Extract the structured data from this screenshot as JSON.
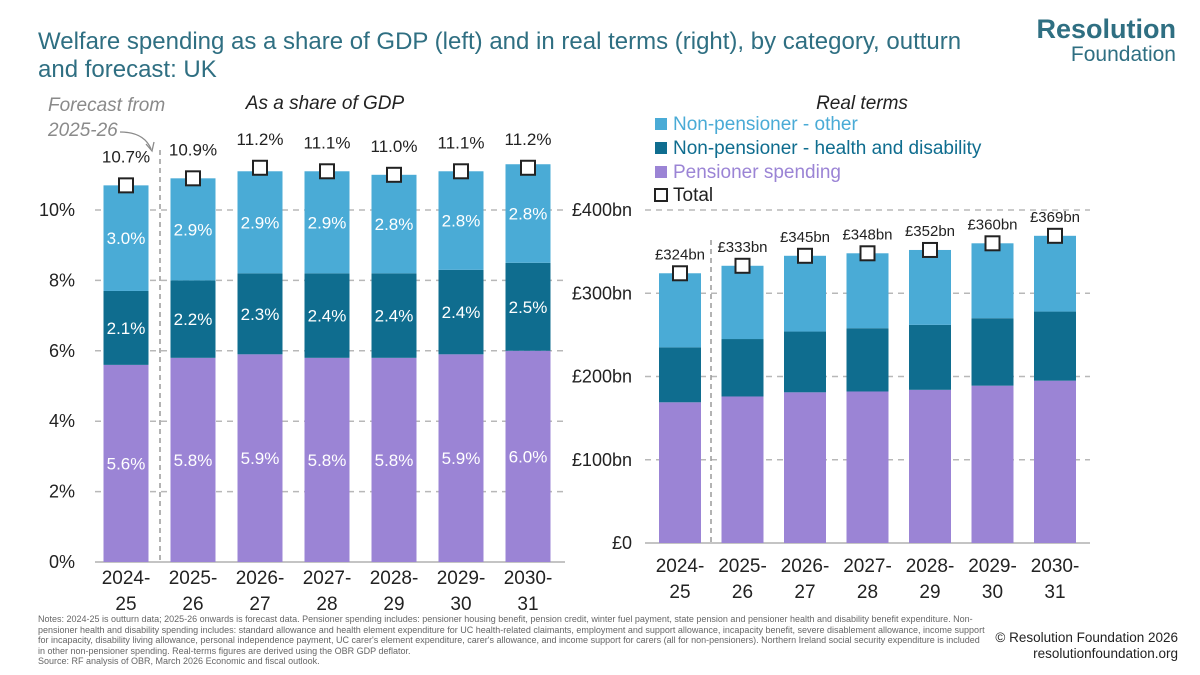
{
  "title": "Welfare spending as a share of GDP (left) and in real terms (right), by category, outturn and forecast: UK",
  "logo": {
    "line1": "Resolution",
    "line2": "Foundation"
  },
  "colors": {
    "pensioner": "#9b84d5",
    "health": "#0f6d8f",
    "other": "#4aabd6",
    "title": "#2f6f82"
  },
  "chart_data": [
    {
      "type": "bar",
      "stacked": true,
      "title": "As a share of GDP",
      "annotation": "Forecast from 2025-26",
      "categories": [
        "2024-25",
        "2025-26",
        "2026-27",
        "2027-28",
        "2028-29",
        "2029-30",
        "2030-31"
      ],
      "series": [
        {
          "name": "Pensioner spending",
          "values": [
            5.6,
            5.8,
            5.9,
            5.8,
            5.8,
            5.9,
            6.0
          ],
          "labels": [
            "5.6%",
            "5.8%",
            "5.9%",
            "5.8%",
            "5.8%",
            "5.9%",
            "6.0%"
          ]
        },
        {
          "name": "Non-pensioner - health and disability",
          "values": [
            2.1,
            2.2,
            2.3,
            2.4,
            2.4,
            2.4,
            2.5
          ],
          "labels": [
            "2.1%",
            "2.2%",
            "2.3%",
            "2.4%",
            "2.4%",
            "2.4%",
            "2.5%"
          ]
        },
        {
          "name": "Non-pensioner - other",
          "values": [
            3.0,
            2.9,
            2.9,
            2.9,
            2.8,
            2.8,
            2.8
          ],
          "labels": [
            "3.0%",
            "2.9%",
            "2.9%",
            "2.9%",
            "2.8%",
            "2.8%",
            "2.8%"
          ]
        }
      ],
      "total": {
        "name": "Total",
        "values": [
          10.7,
          10.9,
          11.2,
          11.1,
          11.0,
          11.1,
          11.2
        ],
        "labels": [
          "10.7%",
          "10.9%",
          "11.2%",
          "11.1%",
          "11.0%",
          "11.1%",
          "11.2%"
        ]
      },
      "ylim": [
        0,
        12
      ],
      "yticks": [
        0,
        2,
        4,
        6,
        8,
        10
      ],
      "ytick_labels": [
        "0%",
        "2%",
        "4%",
        "6%",
        "8%",
        "10%"
      ]
    },
    {
      "type": "bar",
      "stacked": true,
      "title": "Real terms",
      "categories": [
        "2024-25",
        "2025-26",
        "2026-27",
        "2027-28",
        "2028-29",
        "2029-30",
        "2030-31"
      ],
      "series": [
        {
          "name": "Pensioner spending",
          "values": [
            169,
            176,
            181,
            182,
            184,
            189,
            195
          ]
        },
        {
          "name": "Non-pensioner - health and disability",
          "values": [
            66,
            69,
            73,
            76,
            78,
            81,
            83
          ]
        },
        {
          "name": "Non-pensioner - other",
          "values": [
            89,
            88,
            91,
            90,
            90,
            90,
            91
          ]
        }
      ],
      "total": {
        "name": "Total",
        "values": [
          324,
          333,
          345,
          348,
          352,
          360,
          369
        ],
        "labels": [
          "£324bn",
          "£333bn",
          "£345bn",
          "£348bn",
          "£352bn",
          "£360bn",
          "£369bn"
        ]
      },
      "ylim": [
        0,
        400
      ],
      "yticks": [
        0,
        100,
        200,
        300,
        400
      ],
      "ytick_labels": [
        "£0",
        "£100bn",
        "£200bn",
        "£300bn",
        "£400bn"
      ],
      "legend": [
        "Non-pensioner - other",
        "Non-pensioner - health and disability",
        "Pensioner spending",
        "Total"
      ]
    }
  ],
  "notes": [
    "Notes: 2024-25 is outturn data; 2025-26 onwards is forecast data. Pensioner spending includes: pensioner housing benefit, pension credit, winter fuel payment, state pension and pensioner health and disability benefit expenditure. Non-pensioner health and disability spending includes: standard allowance and health element expenditure for UC health-related claimants, employment and support allowance, incapacity benefit, severe disablement allowance, income support for incapacity, disability living allowance, personal independence payment, UC carer's element expenditure, carer's allowance, and income support for carers (all for non-pensioners). Northern Ireland social security expenditure is included in other non-pensioner spending. Real-terms figures are derived using the OBR GDP deflator.",
    "Source: RF analysis of OBR, March 2026 Economic and fiscal outlook."
  ],
  "copyright": {
    "line1": "© Resolution Foundation 2026",
    "line2": "resolutionfoundation.org"
  }
}
